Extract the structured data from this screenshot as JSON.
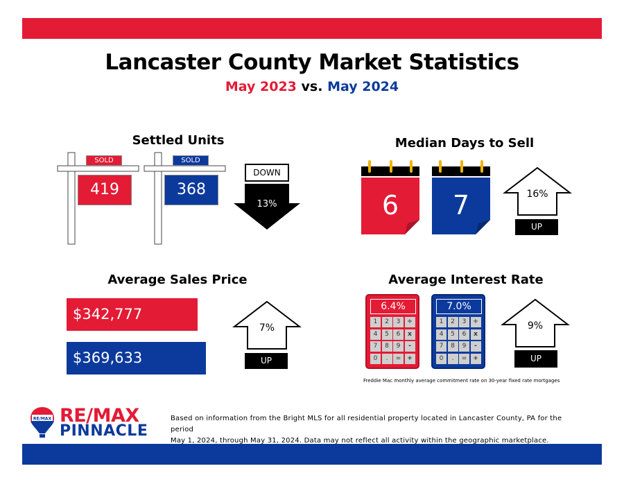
{
  "header": {
    "title": "Lancaster County Market Statistics",
    "period_a": "May 2023",
    "vs": "vs.",
    "period_b": "May 2024"
  },
  "settled_units": {
    "title": "Settled Units",
    "tag": "SOLD",
    "value_2023": "419",
    "value_2024": "368",
    "direction": "DOWN",
    "change": "13%"
  },
  "median_days": {
    "title": "Median Days to Sell",
    "value_2023": "6",
    "value_2024": "7",
    "change": "16%",
    "direction": "UP"
  },
  "avg_price": {
    "title": "Average Sales Price",
    "value_2023": "$342,777",
    "value_2024": "$369,633",
    "change": "7%",
    "direction": "UP"
  },
  "interest_rate": {
    "title": "Average Interest Rate",
    "value_2023": "6.4%",
    "value_2024": "7.0%",
    "change": "9%",
    "direction": "UP",
    "footnote": "Freddie Mac monthly average commitment rate on 30-year fixed rate mortgages",
    "keys": [
      "1",
      "2",
      "3",
      "÷",
      "4",
      "5",
      "6",
      "x",
      "7",
      "8",
      "9",
      "-",
      "0",
      ".",
      "=",
      "+"
    ]
  },
  "footer": {
    "logo_main": "RE/MAX",
    "logo_sub": "PINNACLE",
    "balloon_text": "RE/MAX",
    "source_line1": "Based on information from the Bright MLS for all residential property located in Lancaster County, PA for the period",
    "source_line2": "May 1, 2024, through May 31, 2024.  Data may not reflect all activity within the geographic marketplace."
  },
  "colors": {
    "red": "#e31b35",
    "blue": "#0c3a9c",
    "black": "#000000"
  }
}
